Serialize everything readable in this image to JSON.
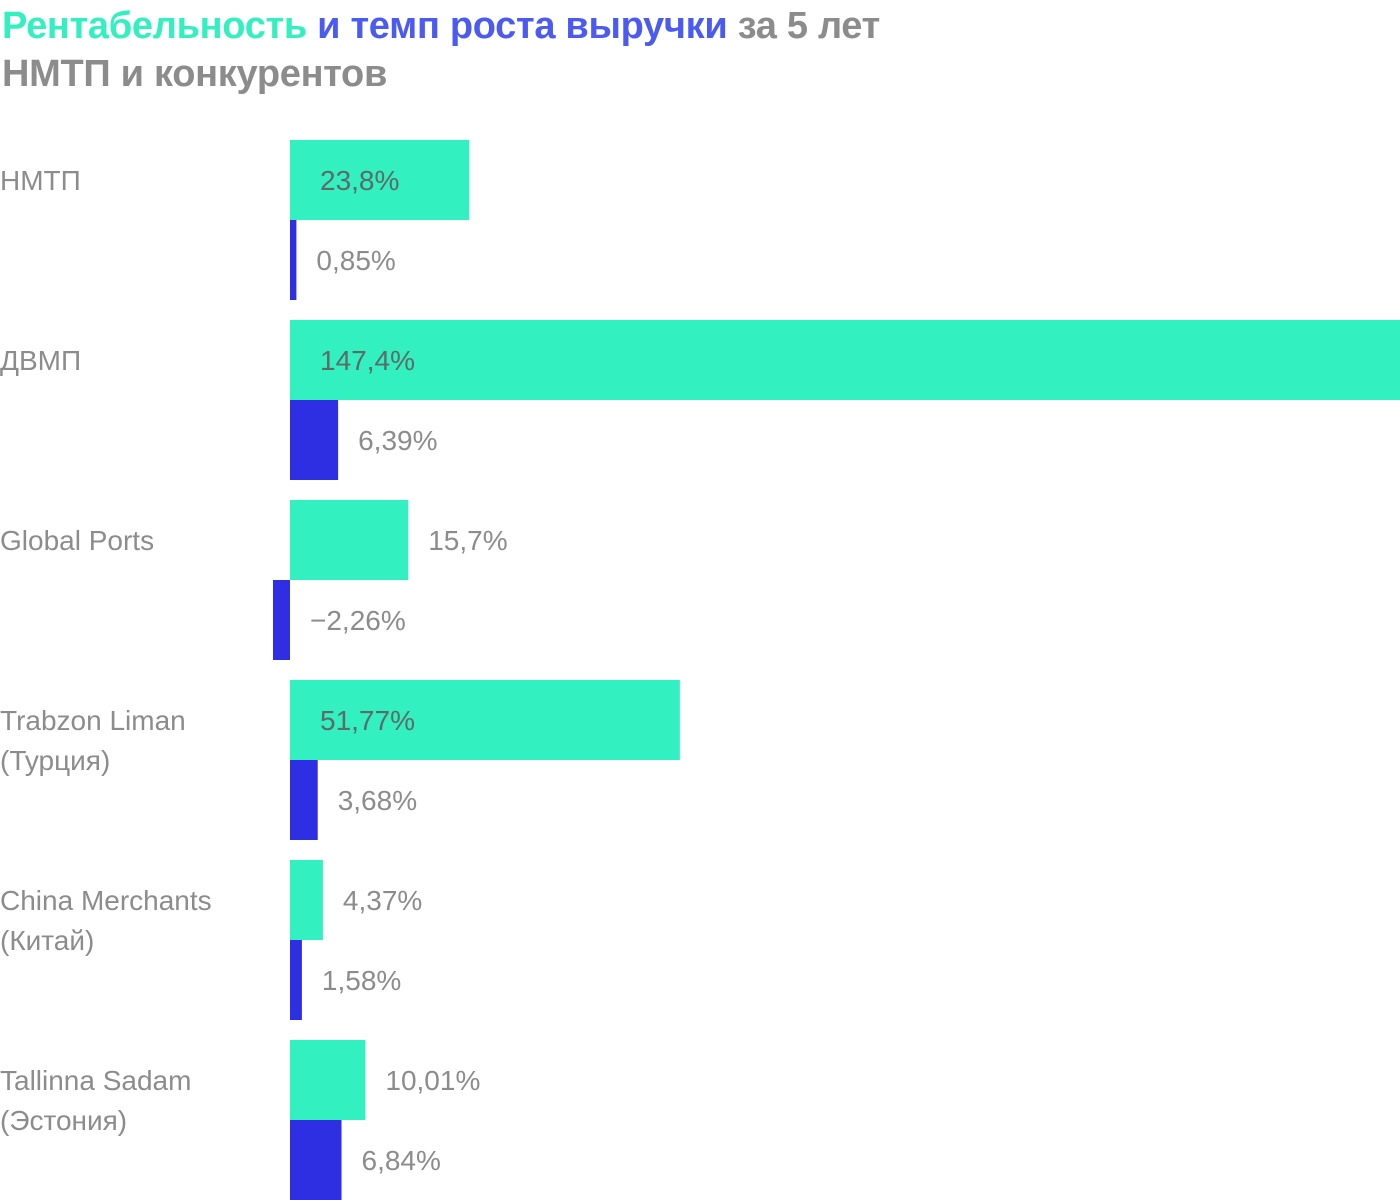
{
  "title": {
    "part_green": "Рентабельность",
    "part_blue": "и темп роста выручки",
    "part_rest": "за 5 лет",
    "line2": "НМТП и конкурентов"
  },
  "colors": {
    "profitability": "#33f0c1",
    "revenue_growth": "#2e2ee3",
    "title_green": "#33f0c1",
    "title_blue": "#4b5bf2",
    "text_gray": "#8c8c8c",
    "label_inside": "#5c6b66"
  },
  "chart_data": {
    "type": "bar",
    "orientation": "horizontal",
    "categories": [
      [
        "НМТП"
      ],
      [
        "ДВМП"
      ],
      [
        "Global Ports"
      ],
      [
        "Trabzon Liman",
        "(Турция)"
      ],
      [
        "China Merchants",
        "(Китай)"
      ],
      [
        "Tallinna Sadam",
        "(Эстония)"
      ]
    ],
    "series": [
      {
        "key": "profitability",
        "values": [
          23.8,
          147.4,
          15.7,
          51.77,
          4.37,
          10.01
        ],
        "labels": [
          "23,8%",
          "147,4%",
          "15,7%",
          "51,77%",
          "4,37%",
          "10,01%"
        ]
      },
      {
        "key": "revenue_growth",
        "values": [
          0.85,
          6.39,
          -2.26,
          3.68,
          1.58,
          6.84
        ],
        "labels": [
          "0,85%",
          "6,39%",
          "−2,26%",
          "3,68%",
          "1,58%",
          "6,84%"
        ]
      }
    ],
    "grid": false,
    "legend": "none"
  }
}
